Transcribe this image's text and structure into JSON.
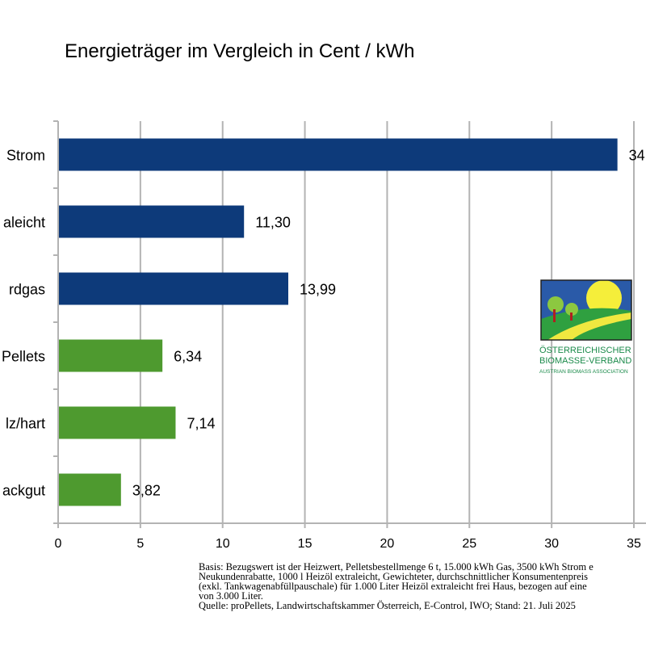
{
  "chart_data": {
    "type": "bar",
    "orientation": "horizontal",
    "title": "Energieträger im Vergleich in Cent / kWh",
    "categories": [
      "Strom",
      "aleicht",
      "rdgas",
      "Pellets",
      "lz/hart",
      "ackgut"
    ],
    "values": [
      34,
      11.3,
      13.99,
      6.34,
      7.14,
      3.82
    ],
    "value_labels": [
      "34,",
      "11,30",
      "13,99",
      "6,34",
      "7,14",
      "3,82"
    ],
    "bar_colors": [
      "#0d3a7a",
      "#0d3a7a",
      "#0d3a7a",
      "#4e9a2f",
      "#4e9a2f",
      "#4e9a2f"
    ],
    "xlim": [
      0,
      35
    ],
    "x_ticks": [
      "0",
      "5",
      "10",
      "15",
      "20",
      "25",
      "30",
      "35"
    ],
    "grid": true
  },
  "footnote": [
    "Basis: Bezugswert ist der Heizwert, Pelletsbestellmenge 6 t, 15.000 kWh Gas, 3500 kWh Strom e",
    "Neukundenrabatte, 1000 l Heizöl extraleicht, Gewichteter, durchschnittlicher Konsumentenpreis",
    "(exkl. Tankwagenabfüllpauschale) für 1.000 Liter Heizöl extraleicht frei Haus, bezogen auf eine",
    "von 3.000 Liter.",
    "Quelle: proPellets, Landwirtschaftskammer Österreich, E-Control, IWO; Stand: 21. Juli 2025"
  ],
  "logo": {
    "line1": "Österreichischer",
    "line2": "Biomasse-Verband",
    "line3": "Austrian Biomass Association"
  }
}
